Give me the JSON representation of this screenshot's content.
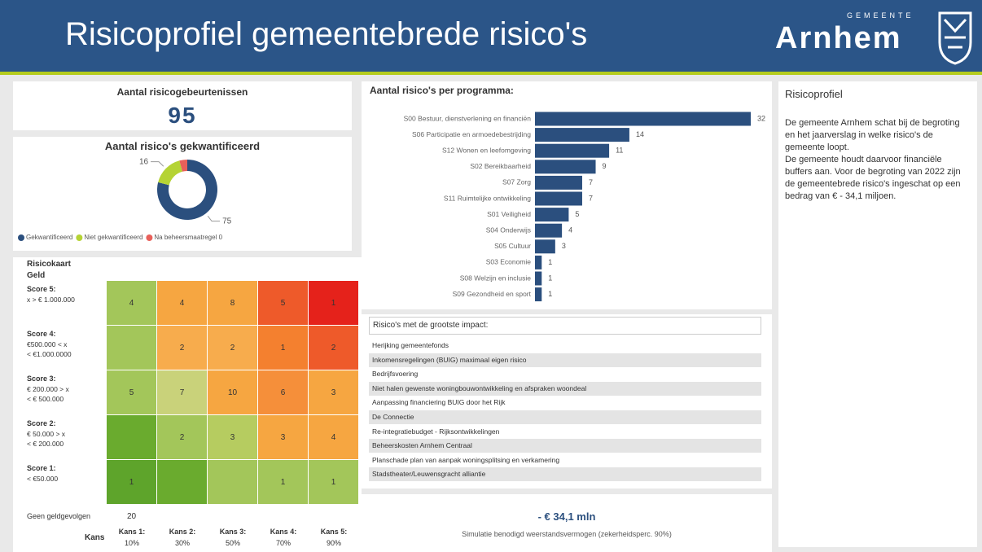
{
  "header": {
    "title": "Risicoprofiel gemeentebrede risico's",
    "logo_small": "GEMEENTE",
    "logo_name": "Arnhem"
  },
  "kpi_events": {
    "title": "Aantal risicogebeurtenissen",
    "value": 95
  },
  "chart_data": [
    {
      "type": "donut",
      "title": "Aantal risico's gekwantificeerd",
      "categories": [
        "Gekwantificeerd",
        "Niet gekwantificeerd",
        "Na beheersmaatregel 0"
      ],
      "values": [
        75,
        16,
        4
      ],
      "value_labels": [
        "75",
        "16",
        null
      ],
      "colors": [
        "#2b4f7e",
        "#b5d334",
        "#e8605a"
      ]
    },
    {
      "type": "hbar",
      "title": "Aantal risico's per programma:",
      "categories": [
        "S00 Bestuur, dienstverlening en financiën",
        "S06 Participatie en armoedebestrijding",
        "S12 Wonen en leefomgeving",
        "S02 Bereikbaarheid",
        "S07 Zorg",
        "S11 Ruimtelijke ontwikkeling",
        "S01 Veiligheid",
        "S04 Onderwijs",
        "S05 Cultuur",
        "S03 Economie",
        "S08 Welzijn en inclusie",
        "S09 Gezondheid en sport"
      ],
      "values": [
        32,
        14,
        11,
        9,
        7,
        7,
        5,
        4,
        3,
        1,
        1,
        1
      ],
      "color": "#2b4f7e"
    }
  ],
  "risk_matrix": {
    "title": "Risicokaart",
    "subtitle": "Geld",
    "rows": [
      {
        "label": "Score 5:",
        "range": [
          "x > € 1.000.000"
        ],
        "cells": [
          4,
          4,
          8,
          5,
          1
        ],
        "colors": [
          "#a3c65a",
          "#f6a641",
          "#f6a641",
          "#ee5a2a",
          "#e5221b"
        ]
      },
      {
        "label": "Score 4:",
        "range": [
          "€500.000 < x",
          "< €1.000.0000"
        ],
        "cells": [
          null,
          2,
          2,
          1,
          2
        ],
        "colors": [
          "#a3c65a",
          "#f7ac4d",
          "#f7ac4d",
          "#f4802f",
          "#ee5a2a"
        ]
      },
      {
        "label": "Score 3:",
        "range": [
          "€ 200.000 > x",
          "< € 500.000"
        ],
        "cells": [
          5,
          7,
          10,
          6,
          3
        ],
        "colors": [
          "#a3c65a",
          "#c9d27a",
          "#f6a641",
          "#f58f3a",
          "#f6a641"
        ]
      },
      {
        "label": "Score 2:",
        "range": [
          "€ 50.000 > x",
          "< € 200.000"
        ],
        "cells": [
          null,
          2,
          3,
          3,
          4
        ],
        "colors": [
          "#6aab2e",
          "#a3c65a",
          "#b6cc60",
          "#f6a641",
          "#f6a641"
        ]
      },
      {
        "label": "Score 1:",
        "range": [
          "< €50.000"
        ],
        "cells": [
          1,
          null,
          null,
          1,
          1
        ],
        "colors": [
          "#5ea42b",
          "#6aab2e",
          "#a3c65a",
          "#a3c65a",
          "#a3c65a"
        ]
      }
    ],
    "no_money_label": "Geen geldgevolgen",
    "no_money_value": 20,
    "axis_label": "Kans",
    "columns": [
      {
        "label": "Kans 1:",
        "pct": "10%"
      },
      {
        "label": "Kans 2:",
        "pct": "30%"
      },
      {
        "label": "Kans 3:",
        "pct": "50%"
      },
      {
        "label": "Kans 4:",
        "pct": "70%"
      },
      {
        "label": "Kans 5:",
        "pct": "90%"
      }
    ]
  },
  "impact_list": {
    "title": "Risico's met de grootste impact:",
    "items": [
      "Herijking gemeentefonds",
      "Inkomensregelingen (BUIG) maximaal eigen risico",
      "Bedrijfsvoering",
      "Niet halen gewenste woningbouwontwikkeling en afspraken woondeal",
      "Aanpassing financiering BUIG door het Rijk",
      "De Connectie",
      "Re-integratiebudget - Rijksontwikkelingen",
      "Beheerskosten Arnhem Centraal",
      "Planschade plan van aanpak woningsplitsing en verkamering",
      "Stadstheater/Leuwensgracht alliantie"
    ]
  },
  "kpi_capacity": {
    "value": "- € 34,1 mln",
    "caption": "Simulatie benodigd weerstandsvermogen (zekerheidsperc. 90%)"
  },
  "profile": {
    "title": "Risicoprofiel",
    "paragraphs": [
      "De gemeente Arnhem schat bij de begroting en het jaarverslag in welke risico's de gemeente loopt.",
      "De gemeente houdt daarvoor financiële buffers aan. Voor de begroting van 2022 zijn de gemeentebrede risico's ingeschat op een bedrag van € - 34,1 miljoen."
    ]
  }
}
